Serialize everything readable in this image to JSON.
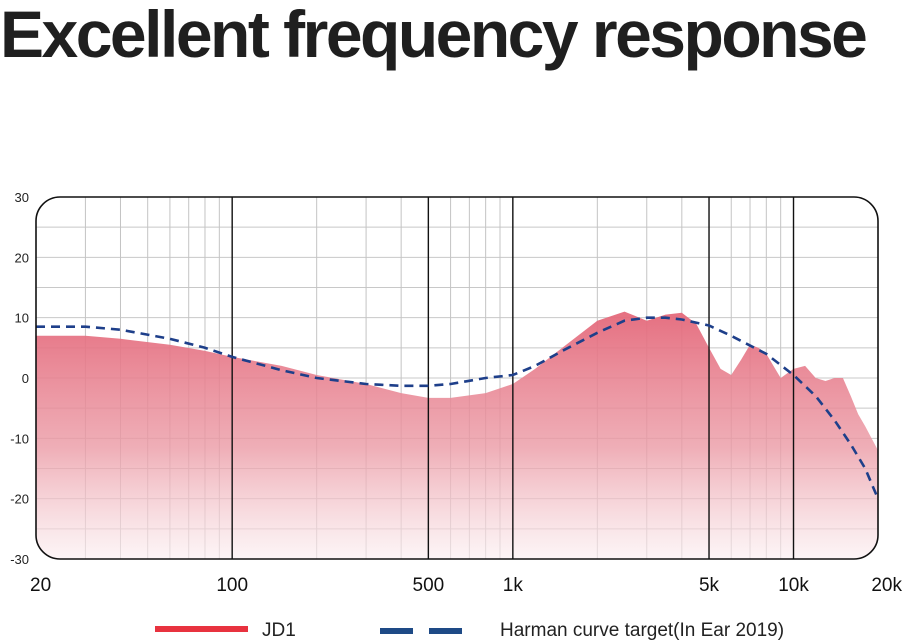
{
  "header": {
    "title": "Excellent frequency response"
  },
  "chart_data": {
    "type": "area",
    "x_scale": "log",
    "xlim": [
      20,
      20000
    ],
    "ylim": [
      -30,
      30
    ],
    "grid": true,
    "legend_placement": "bottom",
    "y_ticks": [
      {
        "value": 30,
        "label": "30"
      },
      {
        "value": 20,
        "label": "20"
      },
      {
        "value": 10,
        "label": "10"
      },
      {
        "value": 0,
        "label": "0"
      },
      {
        "value": -10,
        "label": "-10"
      },
      {
        "value": -20,
        "label": "-20"
      },
      {
        "value": -30,
        "label": "-30"
      }
    ],
    "x_ticks": [
      {
        "value": 20,
        "label": "20"
      },
      {
        "value": 100,
        "label": "100"
      },
      {
        "value": 500,
        "label": "500"
      },
      {
        "value": 1000,
        "label": "1k"
      },
      {
        "value": 5000,
        "label": "5k"
      },
      {
        "value": 10000,
        "label": "10k"
      },
      {
        "value": 20000,
        "label": "20k"
      }
    ],
    "series": [
      {
        "name": "JD1",
        "style": "area",
        "color": "#e4687a",
        "x": [
          20,
          30,
          40,
          60,
          80,
          100,
          150,
          200,
          300,
          400,
          500,
          600,
          800,
          1000,
          1200,
          1500,
          2000,
          2500,
          3000,
          3500,
          4000,
          4500,
          5000,
          5500,
          6000,
          6500,
          7000,
          7500,
          8000,
          9000,
          10000,
          11000,
          12000,
          13000,
          14000,
          15000,
          16000,
          17000,
          18000,
          20000
        ],
        "y": [
          7,
          7,
          6.5,
          5.5,
          4.5,
          3.5,
          2,
          0.5,
          -1,
          -2.5,
          -3.3,
          -3.3,
          -2.5,
          -1,
          1.5,
          5,
          9.5,
          11,
          9.5,
          10.5,
          10.8,
          9,
          5,
          1.5,
          0.5,
          3,
          5.5,
          5,
          4,
          0,
          1.5,
          2,
          0,
          -0.5,
          0,
          0,
          -3,
          -6,
          -8,
          -12
        ]
      },
      {
        "name": "Harman curve target(In Ear 2019)",
        "style": "dashed-line",
        "color": "#1e3f8a",
        "x": [
          20,
          30,
          40,
          60,
          80,
          100,
          150,
          200,
          300,
          400,
          500,
          600,
          800,
          1000,
          1200,
          1500,
          2000,
          2500,
          3000,
          3500,
          4000,
          5000,
          6000,
          8000,
          10000,
          12000,
          14000,
          16000,
          18000,
          20000
        ],
        "y": [
          8.5,
          8.5,
          8,
          6.5,
          5,
          3.5,
          1.3,
          0,
          -1,
          -1.3,
          -1.3,
          -1,
          0,
          0.5,
          2,
          4.5,
          7.5,
          9.5,
          10,
          10,
          9.7,
          8.7,
          7,
          4,
          0.5,
          -3,
          -7,
          -11,
          -15,
          -20
        ]
      }
    ]
  }
}
